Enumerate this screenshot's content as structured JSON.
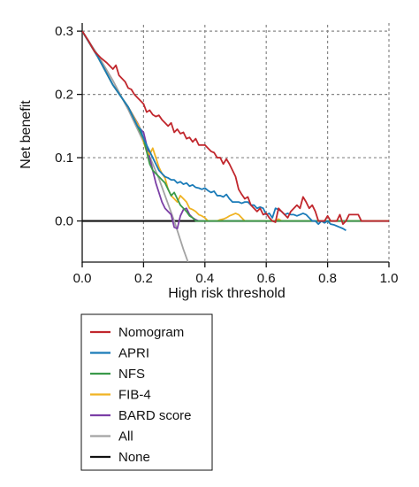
{
  "chart_data": {
    "type": "line",
    "xlabel": "High risk threshold",
    "ylabel": "Net benefit",
    "xlim": [
      0.0,
      1.0
    ],
    "ylim": [
      -0.065,
      0.31
    ],
    "x_ticks": [
      "0.0",
      "0.2",
      "0.4",
      "0.6",
      "0.8",
      "1.0"
    ],
    "y_ticks": [
      "0.0",
      "0.1",
      "0.2",
      "0.3"
    ],
    "grid": true,
    "legend_position": "bottom-left",
    "series": [
      {
        "name": "Nomogram",
        "color": "#c1272d",
        "points": [
          [
            0.0,
            0.3
          ],
          [
            0.02,
            0.285
          ],
          [
            0.04,
            0.268
          ],
          [
            0.06,
            0.258
          ],
          [
            0.08,
            0.25
          ],
          [
            0.1,
            0.24
          ],
          [
            0.11,
            0.246
          ],
          [
            0.12,
            0.23
          ],
          [
            0.13,
            0.225
          ],
          [
            0.14,
            0.22
          ],
          [
            0.15,
            0.21
          ],
          [
            0.16,
            0.208
          ],
          [
            0.17,
            0.2
          ],
          [
            0.18,
            0.195
          ],
          [
            0.19,
            0.19
          ],
          [
            0.2,
            0.185
          ],
          [
            0.21,
            0.172
          ],
          [
            0.22,
            0.175
          ],
          [
            0.23,
            0.168
          ],
          [
            0.24,
            0.165
          ],
          [
            0.25,
            0.167
          ],
          [
            0.26,
            0.16
          ],
          [
            0.27,
            0.155
          ],
          [
            0.28,
            0.15
          ],
          [
            0.29,
            0.155
          ],
          [
            0.3,
            0.14
          ],
          [
            0.31,
            0.145
          ],
          [
            0.32,
            0.138
          ],
          [
            0.33,
            0.14
          ],
          [
            0.34,
            0.13
          ],
          [
            0.35,
            0.132
          ],
          [
            0.36,
            0.125
          ],
          [
            0.37,
            0.13
          ],
          [
            0.38,
            0.12
          ],
          [
            0.39,
            0.12
          ],
          [
            0.4,
            0.12
          ],
          [
            0.41,
            0.115
          ],
          [
            0.42,
            0.11
          ],
          [
            0.43,
            0.108
          ],
          [
            0.44,
            0.1
          ],
          [
            0.45,
            0.1
          ],
          [
            0.46,
            0.09
          ],
          [
            0.47,
            0.098
          ],
          [
            0.48,
            0.09
          ],
          [
            0.49,
            0.08
          ],
          [
            0.5,
            0.07
          ],
          [
            0.51,
            0.05
          ],
          [
            0.52,
            0.042
          ],
          [
            0.53,
            0.035
          ],
          [
            0.54,
            0.038
          ],
          [
            0.55,
            0.025
          ],
          [
            0.56,
            0.02
          ],
          [
            0.57,
            0.015
          ],
          [
            0.58,
            0.02
          ],
          [
            0.59,
            0.01
          ],
          [
            0.6,
            0.012
          ],
          [
            0.61,
            0.005
          ],
          [
            0.62,
            0.0
          ],
          [
            0.63,
            -0.002
          ],
          [
            0.64,
            0.02
          ],
          [
            0.65,
            0.015
          ],
          [
            0.66,
            0.01
          ],
          [
            0.67,
            0.005
          ],
          [
            0.68,
            0.015
          ],
          [
            0.69,
            0.02
          ],
          [
            0.7,
            0.025
          ],
          [
            0.71,
            0.02
          ],
          [
            0.72,
            0.038
          ],
          [
            0.73,
            0.03
          ],
          [
            0.74,
            0.02
          ],
          [
            0.75,
            0.025
          ],
          [
            0.76,
            0.015
          ],
          [
            0.77,
            0.0
          ],
          [
            0.78,
            0.0
          ],
          [
            0.79,
            0.0
          ],
          [
            0.8,
            0.008
          ],
          [
            0.81,
            0.0
          ],
          [
            0.82,
            0.0
          ],
          [
            0.83,
            0.0
          ],
          [
            0.84,
            0.01
          ],
          [
            0.85,
            -0.005
          ],
          [
            0.86,
            0.0
          ],
          [
            0.87,
            0.01
          ],
          [
            0.88,
            0.01
          ],
          [
            0.89,
            0.01
          ],
          [
            0.9,
            0.01
          ],
          [
            0.91,
            0.0
          ],
          [
            0.92,
            0.0
          ],
          [
            0.96,
            0.0
          ],
          [
            1.0,
            0.0
          ]
        ]
      },
      {
        "name": "APRI",
        "color": "#1a7bb8",
        "points": [
          [
            0.0,
            0.3
          ],
          [
            0.05,
            0.26
          ],
          [
            0.1,
            0.215
          ],
          [
            0.15,
            0.18
          ],
          [
            0.18,
            0.15
          ],
          [
            0.19,
            0.145
          ],
          [
            0.2,
            0.13
          ],
          [
            0.21,
            0.12
          ],
          [
            0.22,
            0.11
          ],
          [
            0.23,
            0.1
          ],
          [
            0.24,
            0.09
          ],
          [
            0.25,
            0.08
          ],
          [
            0.26,
            0.075
          ],
          [
            0.27,
            0.07
          ],
          [
            0.28,
            0.068
          ],
          [
            0.29,
            0.065
          ],
          [
            0.3,
            0.065
          ],
          [
            0.31,
            0.06
          ],
          [
            0.32,
            0.062
          ],
          [
            0.33,
            0.058
          ],
          [
            0.34,
            0.06
          ],
          [
            0.35,
            0.055
          ],
          [
            0.36,
            0.057
          ],
          [
            0.37,
            0.053
          ],
          [
            0.38,
            0.052
          ],
          [
            0.39,
            0.05
          ],
          [
            0.4,
            0.052
          ],
          [
            0.41,
            0.048
          ],
          [
            0.42,
            0.045
          ],
          [
            0.43,
            0.047
          ],
          [
            0.44,
            0.04
          ],
          [
            0.45,
            0.04
          ],
          [
            0.46,
            0.038
          ],
          [
            0.47,
            0.042
          ],
          [
            0.48,
            0.035
          ],
          [
            0.49,
            0.03
          ],
          [
            0.5,
            0.03
          ],
          [
            0.51,
            0.03
          ],
          [
            0.52,
            0.028
          ],
          [
            0.53,
            0.03
          ],
          [
            0.54,
            0.03
          ],
          [
            0.55,
            0.025
          ],
          [
            0.56,
            0.025
          ],
          [
            0.57,
            0.02
          ],
          [
            0.58,
            0.022
          ],
          [
            0.59,
            0.02
          ],
          [
            0.6,
            0.01
          ],
          [
            0.61,
            0.012
          ],
          [
            0.62,
            0.005
          ],
          [
            0.63,
            0.02
          ],
          [
            0.64,
            0.018
          ],
          [
            0.65,
            0.015
          ],
          [
            0.66,
            0.01
          ],
          [
            0.67,
            0.012
          ],
          [
            0.68,
            0.01
          ],
          [
            0.69,
            0.01
          ],
          [
            0.7,
            0.008
          ],
          [
            0.71,
            0.01
          ],
          [
            0.72,
            0.012
          ],
          [
            0.73,
            0.01
          ],
          [
            0.74,
            0.005
          ],
          [
            0.75,
            0.0
          ],
          [
            0.76,
            0.0
          ],
          [
            0.77,
            -0.005
          ],
          [
            0.78,
            0.0
          ],
          [
            0.79,
            -0.003
          ],
          [
            0.8,
            0.0
          ],
          [
            0.81,
            -0.005
          ],
          [
            0.82,
            -0.006
          ],
          [
            0.83,
            -0.008
          ],
          [
            0.84,
            -0.01
          ],
          [
            0.85,
            -0.012
          ],
          [
            0.86,
            -0.015
          ]
        ]
      },
      {
        "name": "NFS",
        "color": "#3a9a4a",
        "points": [
          [
            0.0,
            0.3
          ],
          [
            0.05,
            0.26
          ],
          [
            0.1,
            0.215
          ],
          [
            0.15,
            0.18
          ],
          [
            0.18,
            0.15
          ],
          [
            0.2,
            0.13
          ],
          [
            0.21,
            0.11
          ],
          [
            0.22,
            0.09
          ],
          [
            0.23,
            0.08
          ],
          [
            0.24,
            0.075
          ],
          [
            0.25,
            0.07
          ],
          [
            0.26,
            0.065
          ],
          [
            0.27,
            0.06
          ],
          [
            0.28,
            0.05
          ],
          [
            0.29,
            0.04
          ],
          [
            0.3,
            0.045
          ],
          [
            0.31,
            0.035
          ],
          [
            0.32,
            0.025
          ],
          [
            0.33,
            0.02
          ],
          [
            0.34,
            0.015
          ],
          [
            0.35,
            0.008
          ],
          [
            0.36,
            0.005
          ],
          [
            0.37,
            0.0
          ],
          [
            0.38,
            0.0
          ],
          [
            0.39,
            0.0
          ],
          [
            0.4,
            0.0
          ],
          [
            0.41,
            0.0
          ],
          [
            0.5,
            0.0
          ],
          [
            0.6,
            0.0
          ],
          [
            0.7,
            0.0
          ],
          [
            0.8,
            0.0
          ],
          [
            0.9,
            0.0
          ],
          [
            1.0,
            0.0
          ]
        ]
      },
      {
        "name": "FIB-4",
        "color": "#f0b323",
        "points": [
          [
            0.0,
            0.3
          ],
          [
            0.05,
            0.26
          ],
          [
            0.1,
            0.215
          ],
          [
            0.15,
            0.18
          ],
          [
            0.19,
            0.145
          ],
          [
            0.2,
            0.125
          ],
          [
            0.21,
            0.11
          ],
          [
            0.22,
            0.105
          ],
          [
            0.23,
            0.115
          ],
          [
            0.24,
            0.1
          ],
          [
            0.25,
            0.085
          ],
          [
            0.26,
            0.075
          ],
          [
            0.27,
            0.068
          ],
          [
            0.28,
            0.05
          ],
          [
            0.29,
            0.04
          ],
          [
            0.3,
            0.035
          ],
          [
            0.31,
            0.03
          ],
          [
            0.32,
            0.04
          ],
          [
            0.33,
            0.035
          ],
          [
            0.34,
            0.03
          ],
          [
            0.35,
            0.02
          ],
          [
            0.36,
            0.018
          ],
          [
            0.37,
            0.015
          ],
          [
            0.38,
            0.01
          ],
          [
            0.39,
            0.008
          ],
          [
            0.4,
            0.005
          ],
          [
            0.41,
            0.0
          ],
          [
            0.42,
            0.0
          ],
          [
            0.44,
            0.0
          ],
          [
            0.45,
            0.002
          ],
          [
            0.46,
            0.003
          ],
          [
            0.47,
            0.005
          ],
          [
            0.48,
            0.008
          ],
          [
            0.49,
            0.01
          ],
          [
            0.5,
            0.012
          ],
          [
            0.51,
            0.01
          ],
          [
            0.52,
            0.005
          ],
          [
            0.53,
            0.0
          ],
          [
            0.54,
            0.0
          ],
          [
            0.55,
            0.0
          ],
          [
            0.56,
            0.0
          ],
          [
            0.6,
            0.0
          ],
          [
            0.61,
            0.0
          ],
          [
            0.62,
            0.0
          ],
          [
            0.63,
            0.0
          ],
          [
            0.64,
            0.003
          ],
          [
            0.65,
            0.0
          ],
          [
            0.7,
            0.0
          ],
          [
            0.8,
            0.0
          ],
          [
            0.9,
            0.0
          ],
          [
            1.0,
            0.0
          ]
        ]
      },
      {
        "name": "BARD score",
        "color": "#7b3fa6",
        "points": [
          [
            0.0,
            0.3
          ],
          [
            0.05,
            0.26
          ],
          [
            0.1,
            0.215
          ],
          [
            0.15,
            0.18
          ],
          [
            0.18,
            0.155
          ],
          [
            0.19,
            0.145
          ],
          [
            0.2,
            0.14
          ],
          [
            0.21,
            0.12
          ],
          [
            0.22,
            0.1
          ],
          [
            0.23,
            0.08
          ],
          [
            0.24,
            0.06
          ],
          [
            0.25,
            0.045
          ],
          [
            0.26,
            0.03
          ],
          [
            0.27,
            0.02
          ],
          [
            0.28,
            0.015
          ],
          [
            0.29,
            0.01
          ],
          [
            0.3,
            -0.01
          ],
          [
            0.31,
            -0.012
          ],
          [
            0.32,
            0.008
          ],
          [
            0.33,
            0.018
          ],
          [
            0.34,
            0.02
          ],
          [
            0.35,
            0.01
          ],
          [
            0.36,
            0.005
          ],
          [
            0.37,
            0.002
          ],
          [
            0.38,
            0.0
          ],
          [
            0.39,
            0.0
          ],
          [
            0.4,
            0.0
          ],
          [
            0.5,
            0.0
          ],
          [
            0.6,
            0.0
          ],
          [
            0.7,
            0.0
          ],
          [
            0.8,
            0.0
          ],
          [
            0.9,
            0.0
          ],
          [
            1.0,
            0.0
          ]
        ]
      },
      {
        "name": "All",
        "color": "#a3a3a3",
        "points": [
          [
            0.0,
            0.3
          ],
          [
            0.05,
            0.263
          ],
          [
            0.1,
            0.222
          ],
          [
            0.15,
            0.176
          ],
          [
            0.2,
            0.125
          ],
          [
            0.25,
            0.067
          ],
          [
            0.3,
            0.0
          ],
          [
            0.33,
            -0.045
          ],
          [
            0.345,
            -0.065
          ]
        ]
      },
      {
        "name": "None",
        "color": "#111111",
        "points": [
          [
            0.0,
            0.0
          ],
          [
            1.0,
            0.0
          ]
        ]
      }
    ]
  }
}
